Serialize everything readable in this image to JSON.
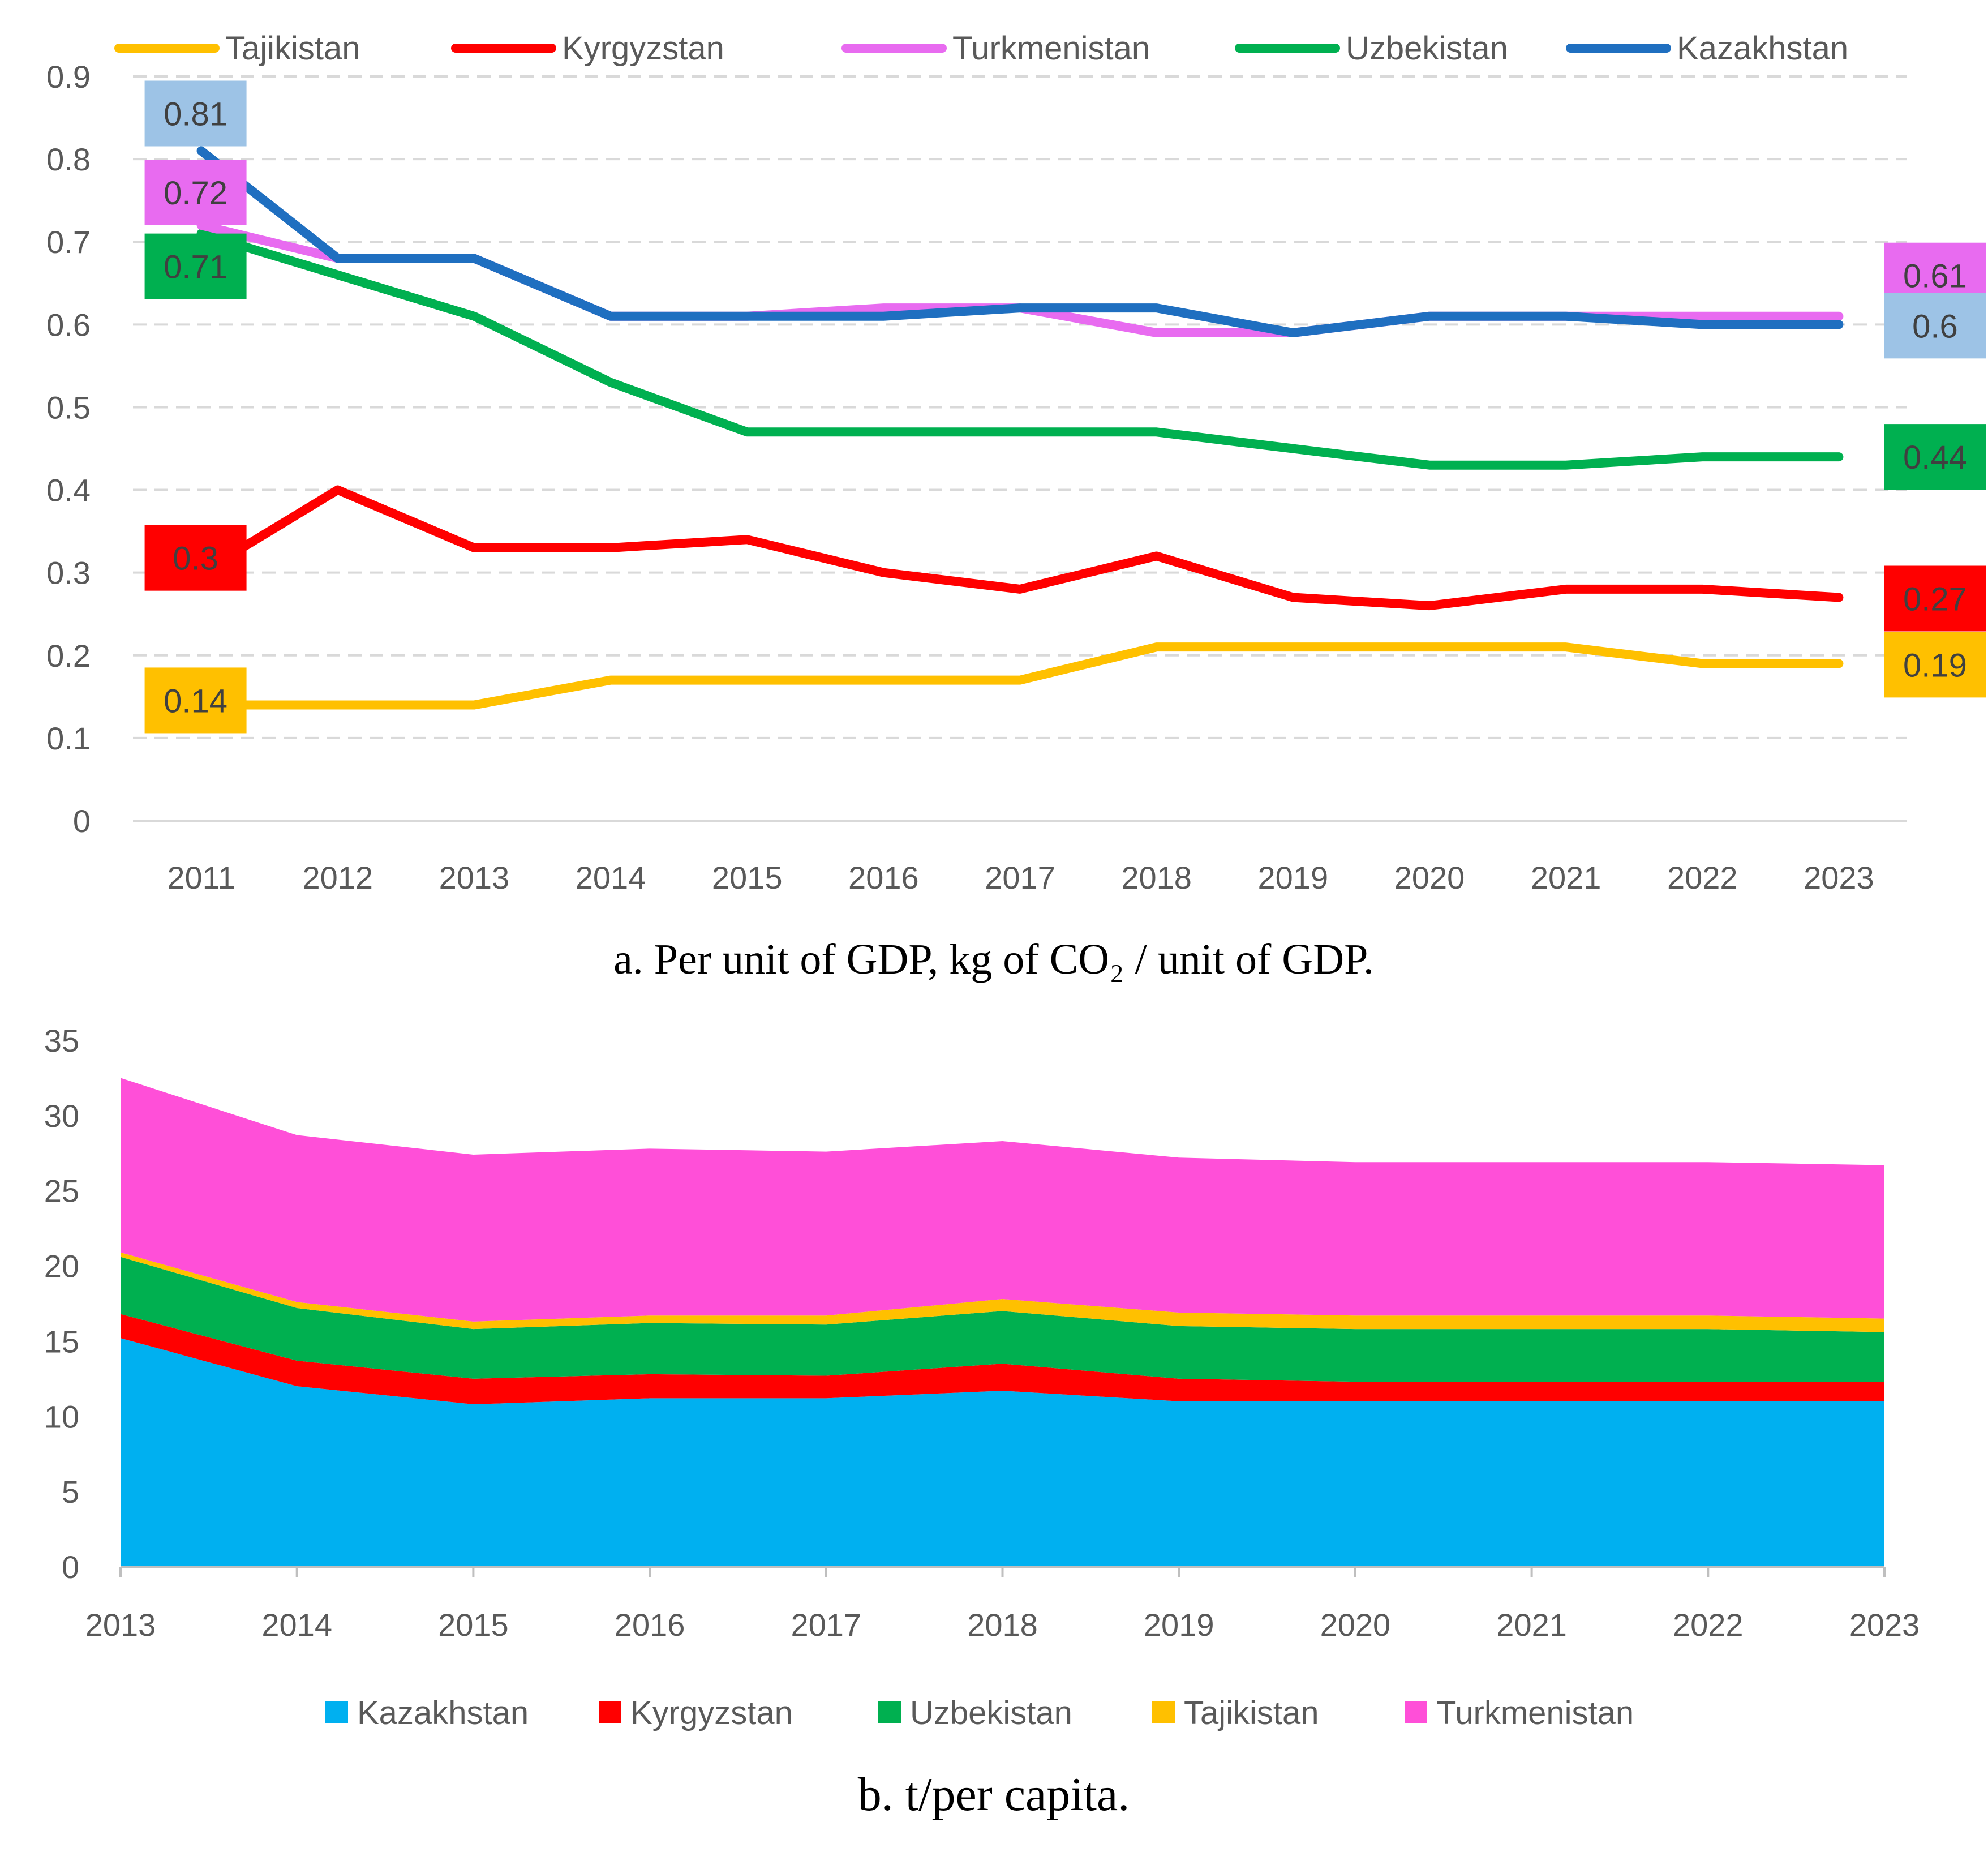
{
  "chart_data": [
    {
      "type": "line",
      "caption": "a. Per unit of GDP, kg of CO₂ / unit of GDP.",
      "categories": [
        "2011",
        "2012",
        "2013",
        "2014",
        "2015",
        "2016",
        "2017",
        "2018",
        "2019",
        "2020",
        "2021",
        "2022",
        "2023"
      ],
      "y_ticks": [
        "0",
        "0.1",
        "0.2",
        "0.3",
        "0.4",
        "0.5",
        "0.6",
        "0.7",
        "0.8",
        "0.9"
      ],
      "ylim": [
        0,
        0.9
      ],
      "grid": "dashed horizontal",
      "legend_position": "top",
      "legend_order": [
        "Tajikistan",
        "Kyrgyzstan",
        "Turkmenistan",
        "Uzbekistan",
        "Kazakhstan"
      ],
      "series": [
        {
          "name": "Tajikistan",
          "color": "#FFC000",
          "values": [
            0.14,
            0.14,
            0.14,
            0.17,
            0.17,
            0.17,
            0.17,
            0.21,
            0.21,
            0.21,
            0.21,
            0.19,
            0.19
          ],
          "label_bg": "#FFC000",
          "start_label": "0.14",
          "end_label": "0.19"
        },
        {
          "name": "Kyrgyzstan",
          "color": "#FF0000",
          "values": [
            0.3,
            0.4,
            0.33,
            0.33,
            0.34,
            0.3,
            0.28,
            0.32,
            0.27,
            0.26,
            0.28,
            0.28,
            0.27
          ],
          "label_bg": "#FF0000",
          "start_label": "0.3",
          "end_label": "0.27"
        },
        {
          "name": "Turkmenistan",
          "color": "#E86BF0",
          "values": [
            0.72,
            0.68,
            0.68,
            0.61,
            0.61,
            0.62,
            0.62,
            0.59,
            0.59,
            0.61,
            0.61,
            0.61,
            0.61
          ],
          "label_bg": "#E86BF0",
          "start_label": "0.72",
          "end_label": "0.61"
        },
        {
          "name": "Uzbekistan",
          "color": "#00B050",
          "values": [
            0.71,
            0.66,
            0.61,
            0.53,
            0.47,
            0.47,
            0.47,
            0.47,
            0.45,
            0.43,
            0.43,
            0.44,
            0.44
          ],
          "label_bg": "#00B050",
          "start_label": "0.71",
          "end_label": "0.44"
        },
        {
          "name": "Kazakhstan",
          "color": "#1F6FC0",
          "values": [
            0.81,
            0.68,
            0.68,
            0.61,
            0.61,
            0.61,
            0.62,
            0.62,
            0.59,
            0.61,
            0.61,
            0.6,
            0.6
          ],
          "label_bg": "#9DC3E6",
          "start_label": "0.81",
          "end_label": "0.6"
        }
      ]
    },
    {
      "type": "area",
      "stacked": true,
      "caption": "b. t/per capita.",
      "categories": [
        "2013",
        "2014",
        "2015",
        "2016",
        "2017",
        "2018",
        "2019",
        "2020",
        "2021",
        "2022",
        "2023"
      ],
      "y_ticks": [
        "0",
        "5",
        "10",
        "15",
        "20",
        "25",
        "30",
        "35"
      ],
      "ylim": [
        0,
        35
      ],
      "legend_position": "bottom",
      "series": [
        {
          "name": "Kazakhstan",
          "color": "#00B0F0",
          "values": [
            15.2,
            12.0,
            10.8,
            11.2,
            11.2,
            11.7,
            11.0,
            11.0,
            11.0,
            11.0,
            11.0
          ]
        },
        {
          "name": "Kyrgyzstan",
          "color": "#FF0000",
          "values": [
            1.6,
            1.7,
            1.7,
            1.6,
            1.5,
            1.8,
            1.5,
            1.3,
            1.3,
            1.3,
            1.3
          ]
        },
        {
          "name": "Uzbekistan",
          "color": "#00B050",
          "values": [
            3.8,
            3.5,
            3.3,
            3.4,
            3.4,
            3.5,
            3.5,
            3.5,
            3.5,
            3.5,
            3.3
          ]
        },
        {
          "name": "Tajikistan",
          "color": "#FFC000",
          "values": [
            0.3,
            0.4,
            0.5,
            0.5,
            0.6,
            0.8,
            0.9,
            0.9,
            0.9,
            0.9,
            0.9
          ]
        },
        {
          "name": "Turkmenistan",
          "color": "#FF4FD8",
          "values": [
            11.6,
            11.1,
            11.1,
            11.1,
            10.9,
            10.5,
            10.3,
            10.2,
            10.2,
            10.2,
            10.2
          ]
        }
      ]
    }
  ]
}
